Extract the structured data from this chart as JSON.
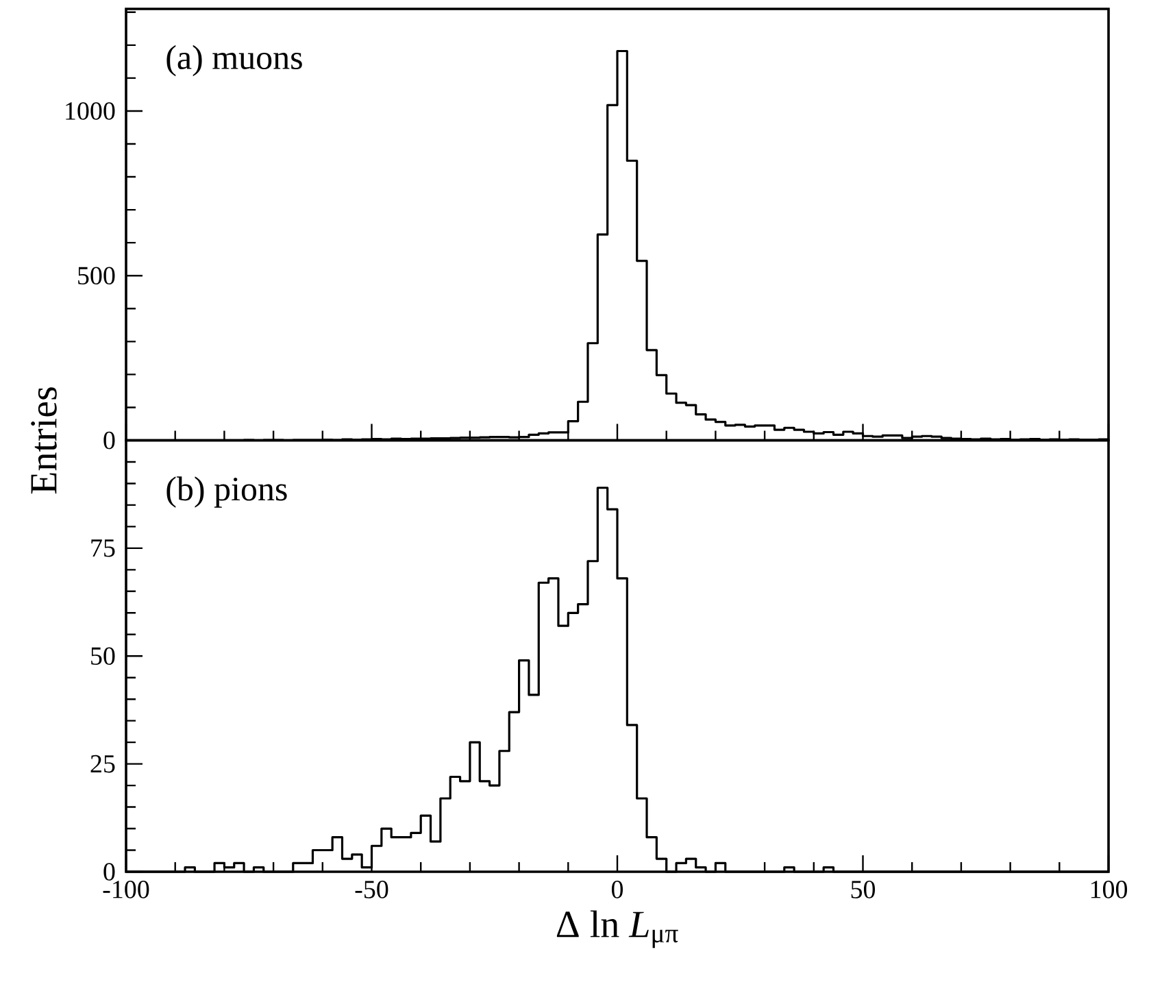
{
  "chart_data": [
    {
      "type": "histogram",
      "color": "#000000",
      "annotations": [
        "(a)  muons"
      ],
      "ylabel": "Entries",
      "tick_labels": "y",
      "xlim": [
        -100,
        100
      ],
      "xticks": [
        -100,
        -50,
        0,
        50,
        100
      ],
      "ylim": [
        0,
        1310
      ],
      "yticks": [
        0,
        500,
        1000
      ],
      "bins": [
        -100,
        -98,
        -96,
        -94,
        -92,
        -90,
        -88,
        -86,
        -84,
        -82,
        -80,
        -78,
        -76,
        -74,
        -72,
        -70,
        -68,
        -66,
        -64,
        -62,
        -60,
        -58,
        -56,
        -54,
        -52,
        -50,
        -48,
        -46,
        -44,
        -42,
        -40,
        -38,
        -36,
        -34,
        -32,
        -30,
        -28,
        -26,
        -24,
        -22,
        -20,
        -18,
        -16,
        -14,
        -12,
        -10,
        -8,
        -6,
        -4,
        -2,
        0,
        2,
        4,
        6,
        8,
        10,
        12,
        14,
        16,
        18,
        20,
        22,
        24,
        26,
        28,
        30,
        32,
        34,
        36,
        38,
        40,
        42,
        44,
        46,
        48,
        50,
        52,
        54,
        56,
        58,
        60,
        62,
        64,
        66,
        68,
        70,
        72,
        74,
        76,
        78,
        80,
        82,
        84,
        86,
        88,
        90,
        92,
        94,
        96,
        98,
        100
      ],
      "values": [
        0,
        0,
        0,
        0,
        0,
        0,
        0,
        0,
        0,
        0,
        0,
        0,
        1,
        0,
        1,
        1,
        0,
        1,
        1,
        1,
        2,
        1,
        3,
        2,
        3,
        4,
        3,
        5,
        4,
        5,
        5,
        6,
        6,
        7,
        8,
        8,
        9,
        10,
        10,
        9,
        10,
        17,
        21,
        24,
        24,
        58,
        117,
        295,
        625,
        1018,
        1182,
        849,
        545,
        274,
        198,
        142,
        114,
        107,
        79,
        63,
        56,
        45,
        47,
        42,
        45,
        45,
        32,
        38,
        32,
        26,
        21,
        25,
        17,
        26,
        21,
        13,
        11,
        15,
        15,
        7,
        11,
        13,
        11,
        7,
        5,
        4,
        3,
        5,
        3,
        4,
        2,
        3,
        4,
        2,
        3,
        2,
        3,
        2,
        2,
        3
      ]
    },
    {
      "type": "histogram",
      "color": "#000000",
      "annotations": [
        "(b)  pions"
      ],
      "xlabel": "Δ ln *L*$_{μπ}$",
      "xlim": [
        -100,
        100
      ],
      "xticks": [
        -100,
        -50,
        0,
        50,
        100
      ],
      "ylim": [
        0,
        100
      ],
      "yticks": [
        0,
        25,
        50,
        75
      ],
      "bins": [
        -100,
        -98,
        -96,
        -94,
        -92,
        -90,
        -88,
        -86,
        -84,
        -82,
        -80,
        -78,
        -76,
        -74,
        -72,
        -70,
        -68,
        -66,
        -64,
        -62,
        -60,
        -58,
        -56,
        -54,
        -52,
        -50,
        -48,
        -46,
        -44,
        -42,
        -40,
        -38,
        -36,
        -34,
        -32,
        -30,
        -28,
        -26,
        -24,
        -22,
        -20,
        -18,
        -16,
        -14,
        -12,
        -10,
        -8,
        -6,
        -4,
        -2,
        0,
        2,
        4,
        6,
        8,
        10,
        12,
        14,
        16,
        18,
        20,
        22,
        24,
        26,
        28,
        30,
        32,
        34,
        36,
        38,
        40,
        42,
        44,
        46,
        48,
        50,
        52,
        54,
        56,
        58,
        60,
        62,
        64,
        66,
        68,
        70,
        72,
        74,
        76,
        78,
        80,
        82,
        84,
        86,
        88,
        90,
        92,
        94,
        96,
        98,
        100
      ],
      "values": [
        0,
        0,
        0,
        0,
        0,
        0,
        1,
        0,
        0,
        2,
        1,
        2,
        0,
        1,
        0,
        0,
        0,
        2,
        2,
        5,
        5,
        8,
        3,
        4,
        1,
        6,
        10,
        8,
        8,
        9,
        13,
        7,
        17,
        22,
        21,
        30,
        21,
        20,
        28,
        37,
        49,
        41,
        67,
        68,
        57,
        60,
        62,
        72,
        89,
        84,
        68,
        34,
        17,
        8,
        3,
        0,
        2,
        3,
        1,
        0,
        2,
        0,
        0,
        0,
        0,
        0,
        0,
        1,
        0,
        0,
        0,
        1,
        0,
        0,
        0,
        0,
        0,
        0,
        0,
        0,
        0,
        0,
        0,
        0,
        0,
        0,
        0,
        0,
        0,
        0,
        0,
        0,
        0,
        0,
        0,
        0,
        0,
        0,
        0,
        0
      ]
    }
  ]
}
